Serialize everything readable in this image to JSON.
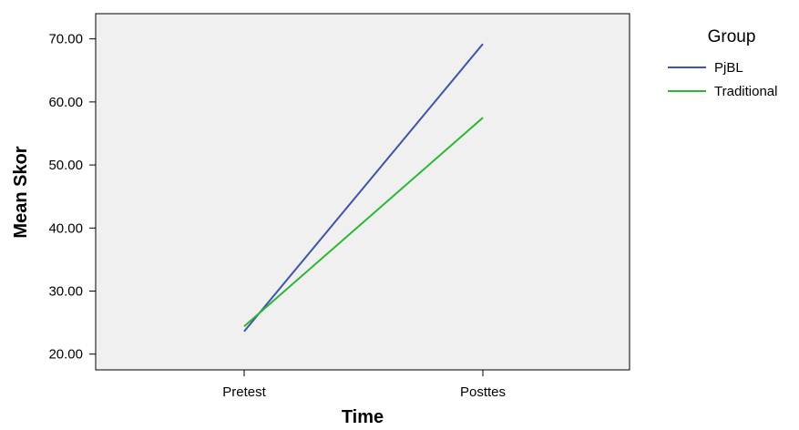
{
  "chart_data": {
    "type": "line",
    "title": "",
    "xlabel": "Time",
    "ylabel": "Mean Skor",
    "categories": [
      "Pretest",
      "Posttes"
    ],
    "ylim": [
      17.5,
      74.0
    ],
    "yticks": [
      "20.00",
      "30.00",
      "40.00",
      "50.00",
      "60.00",
      "70.00"
    ],
    "grid": false,
    "legend": {
      "title": "Group",
      "position": "right"
    },
    "background": "#f0f0f0",
    "series": [
      {
        "name": "PjBL",
        "color": "#3f54a8",
        "values": [
          23.6,
          69.2
        ]
      },
      {
        "name": "Traditional",
        "color": "#2db634",
        "values": [
          24.4,
          57.5
        ]
      }
    ]
  }
}
